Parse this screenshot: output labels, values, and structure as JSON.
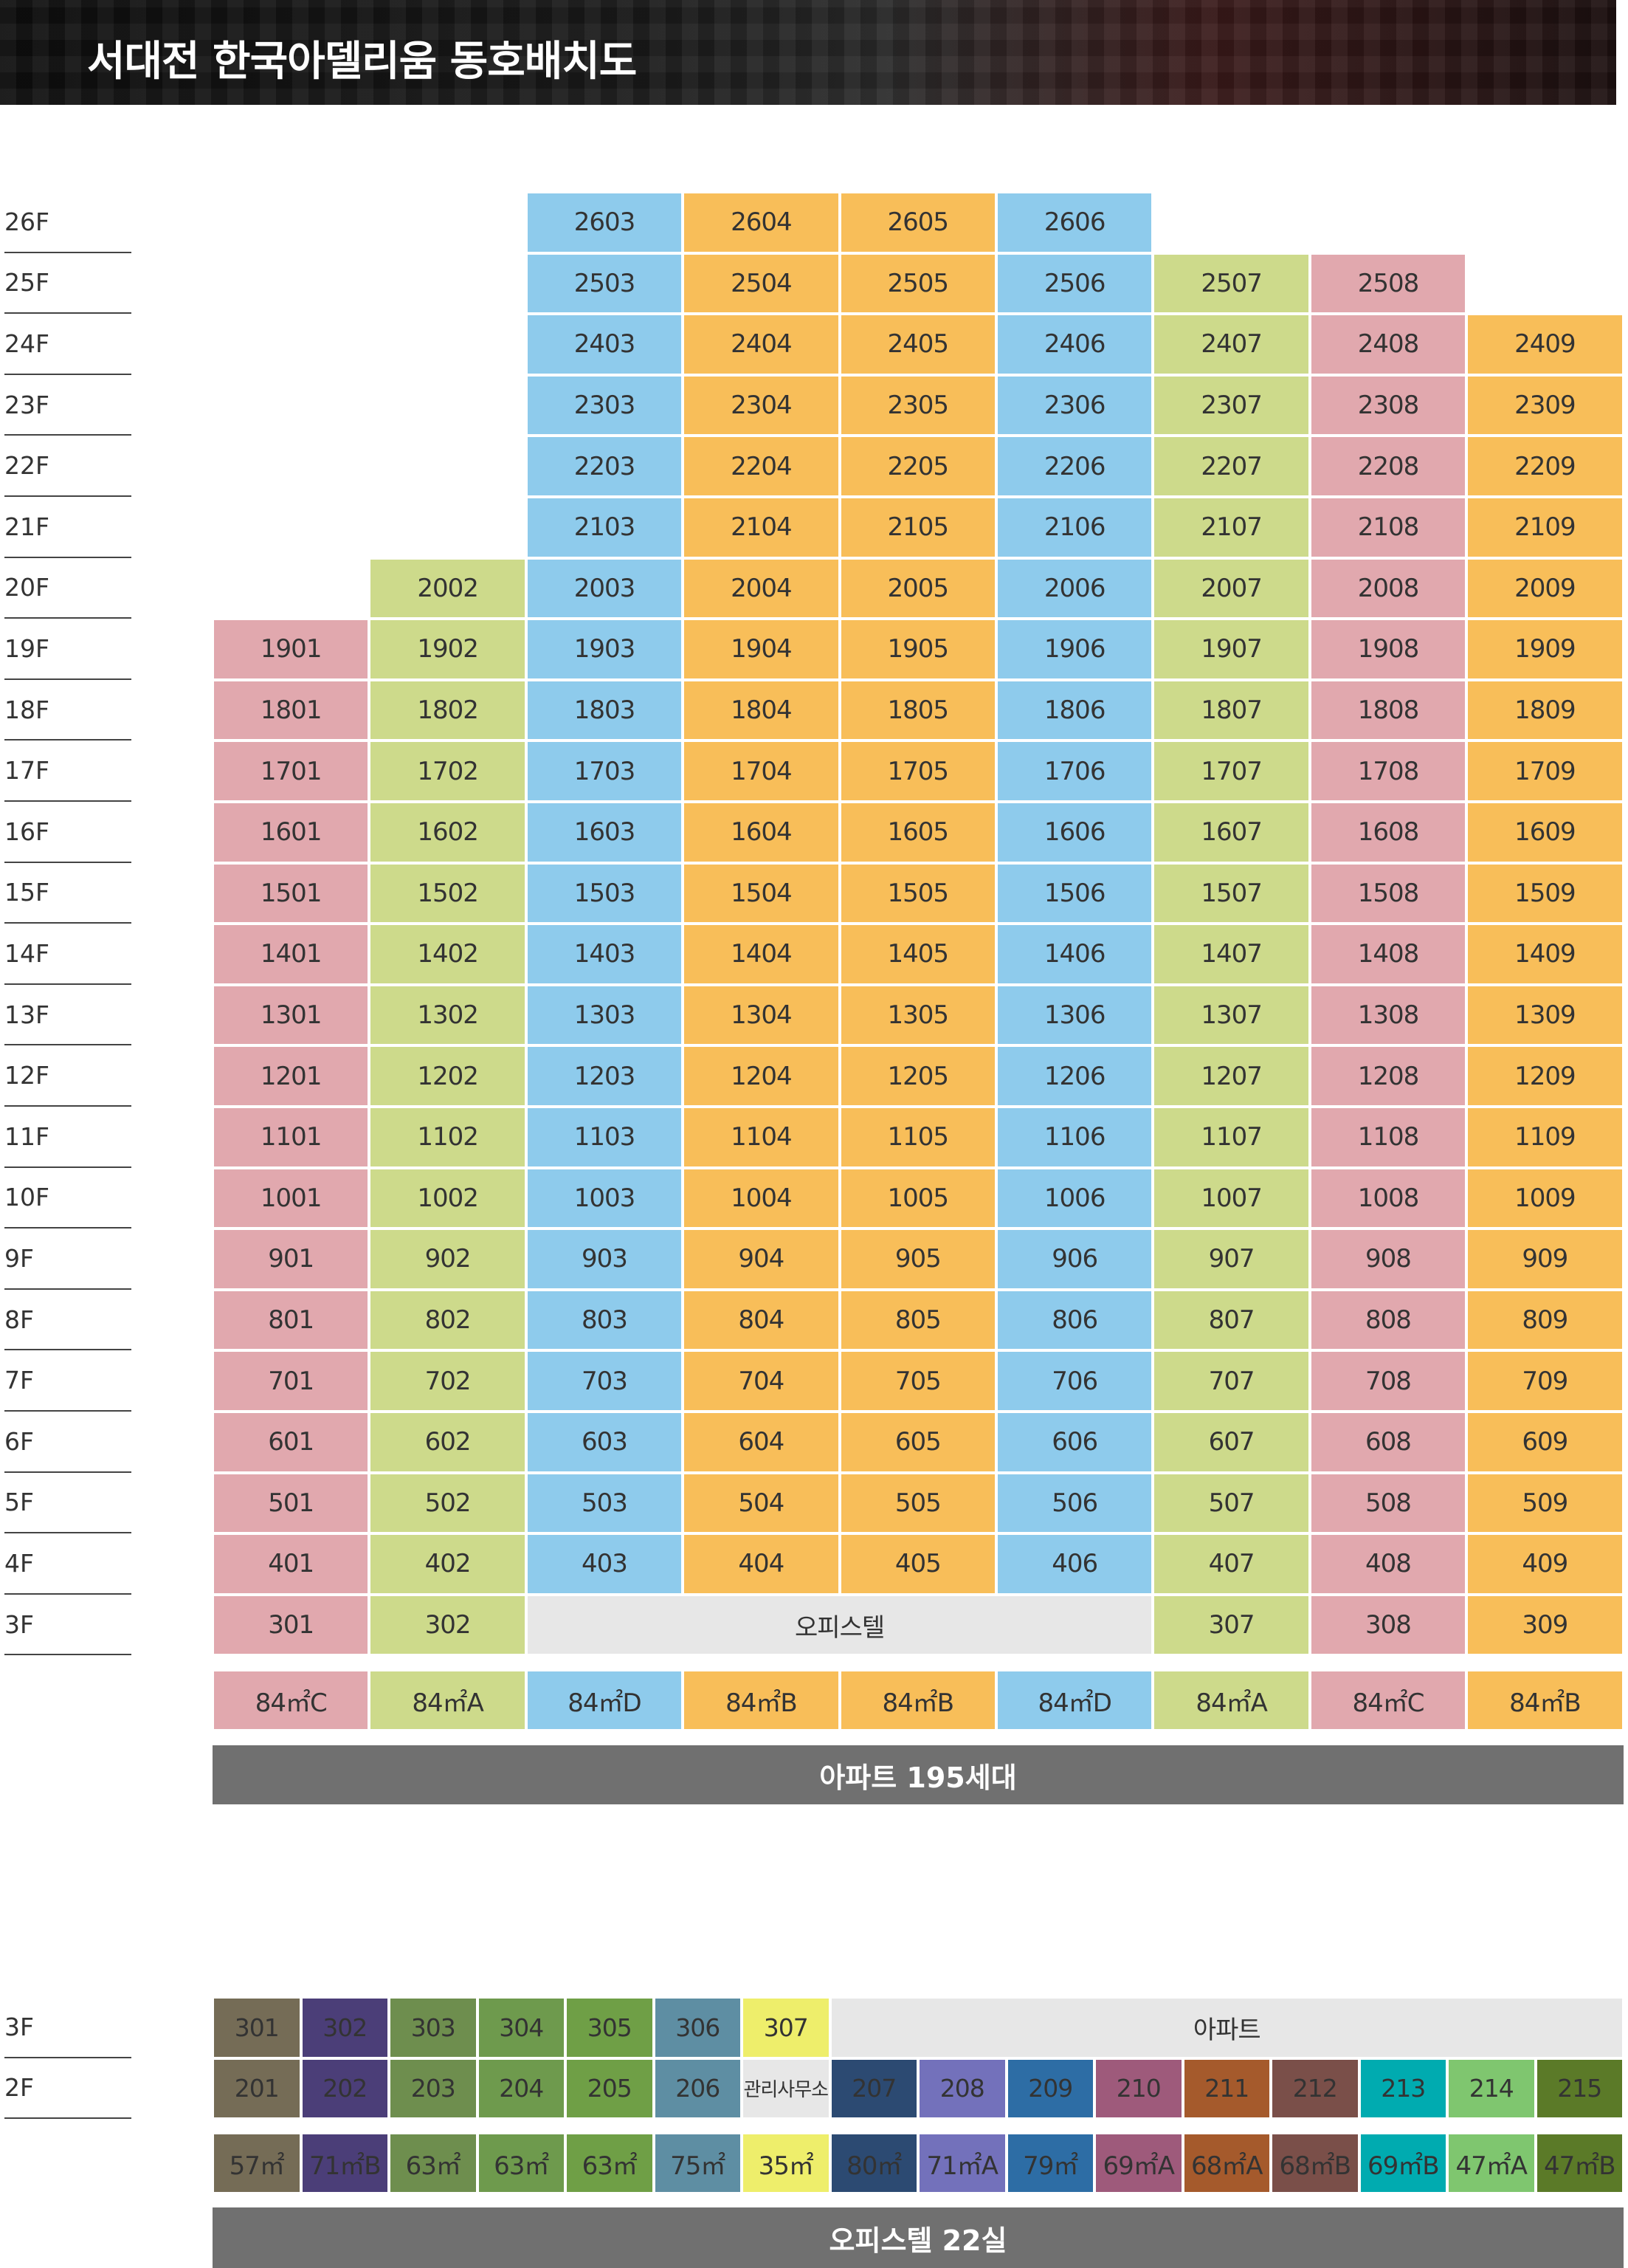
{
  "header": {
    "title": "서대전 한국아델리움 동호배치도"
  },
  "colors": {
    "C": "#e1a8ae",
    "A": "#cdda8b",
    "D": "#8ecbec",
    "B": "#f8be59",
    "office": "#e7e7e7"
  },
  "apartment": {
    "floors": [
      "26F",
      "25F",
      "24F",
      "23F",
      "22F",
      "21F",
      "20F",
      "19F",
      "18F",
      "17F",
      "16F",
      "15F",
      "14F",
      "13F",
      "12F",
      "11F",
      "10F",
      "9F",
      "8F",
      "7F",
      "6F",
      "5F",
      "4F",
      "3F"
    ],
    "column_types": [
      "C",
      "A",
      "D",
      "B",
      "B",
      "D",
      "A",
      "C",
      "B"
    ],
    "type_labels": [
      "84㎡C",
      "84㎡A",
      "84㎡D",
      "84㎡B",
      "84㎡B",
      "84㎡D",
      "84㎡A",
      "84㎡C",
      "84㎡B"
    ],
    "rows": [
      [
        null,
        null,
        "2603",
        "2604",
        "2605",
        "2606",
        null,
        null,
        null
      ],
      [
        null,
        null,
        "2503",
        "2504",
        "2505",
        "2506",
        "2507",
        "2508",
        null
      ],
      [
        null,
        null,
        "2403",
        "2404",
        "2405",
        "2406",
        "2407",
        "2408",
        "2409"
      ],
      [
        null,
        null,
        "2303",
        "2304",
        "2305",
        "2306",
        "2307",
        "2308",
        "2309"
      ],
      [
        null,
        null,
        "2203",
        "2204",
        "2205",
        "2206",
        "2207",
        "2208",
        "2209"
      ],
      [
        null,
        null,
        "2103",
        "2104",
        "2105",
        "2106",
        "2107",
        "2108",
        "2109"
      ],
      [
        null,
        "2002",
        "2003",
        "2004",
        "2005",
        "2006",
        "2007",
        "2008",
        "2009"
      ],
      [
        "1901",
        "1902",
        "1903",
        "1904",
        "1905",
        "1906",
        "1907",
        "1908",
        "1909"
      ],
      [
        "1801",
        "1802",
        "1803",
        "1804",
        "1805",
        "1806",
        "1807",
        "1808",
        "1809"
      ],
      [
        "1701",
        "1702",
        "1703",
        "1704",
        "1705",
        "1706",
        "1707",
        "1708",
        "1709"
      ],
      [
        "1601",
        "1602",
        "1603",
        "1604",
        "1605",
        "1606",
        "1607",
        "1608",
        "1609"
      ],
      [
        "1501",
        "1502",
        "1503",
        "1504",
        "1505",
        "1506",
        "1507",
        "1508",
        "1509"
      ],
      [
        "1401",
        "1402",
        "1403",
        "1404",
        "1405",
        "1406",
        "1407",
        "1408",
        "1409"
      ],
      [
        "1301",
        "1302",
        "1303",
        "1304",
        "1305",
        "1306",
        "1307",
        "1308",
        "1309"
      ],
      [
        "1201",
        "1202",
        "1203",
        "1204",
        "1205",
        "1206",
        "1207",
        "1208",
        "1209"
      ],
      [
        "1101",
        "1102",
        "1103",
        "1104",
        "1105",
        "1106",
        "1107",
        "1108",
        "1109"
      ],
      [
        "1001",
        "1002",
        "1003",
        "1004",
        "1005",
        "1006",
        "1007",
        "1008",
        "1009"
      ],
      [
        "901",
        "902",
        "903",
        "904",
        "905",
        "906",
        "907",
        "908",
        "909"
      ],
      [
        "801",
        "802",
        "803",
        "804",
        "805",
        "806",
        "807",
        "808",
        "809"
      ],
      [
        "701",
        "702",
        "703",
        "704",
        "705",
        "706",
        "707",
        "708",
        "709"
      ],
      [
        "601",
        "602",
        "603",
        "604",
        "605",
        "606",
        "607",
        "608",
        "609"
      ],
      [
        "501",
        "502",
        "503",
        "504",
        "505",
        "506",
        "507",
        "508",
        "509"
      ],
      [
        "401",
        "402",
        "403",
        "404",
        "405",
        "406",
        "407",
        "408",
        "409"
      ],
      [
        "301",
        "302",
        "office",
        "office",
        "office",
        "office",
        "307",
        "308",
        "309"
      ]
    ],
    "office_label": "오피스텔",
    "summary": "아파트 195세대"
  },
  "officetel": {
    "floors": [
      "3F",
      "2F"
    ],
    "row3": [
      "301",
      "302",
      "303",
      "304",
      "305",
      "306",
      "307"
    ],
    "row3_span_label": "아파트",
    "row2": [
      "201",
      "202",
      "203",
      "204",
      "205",
      "206",
      "관리사무소",
      "207",
      "208",
      "209",
      "210",
      "211",
      "212",
      "213",
      "214",
      "215"
    ],
    "colors": [
      "#756c56",
      "#4b3e78",
      "#6e8e4e",
      "#6e9a4d",
      "#6f9f46",
      "#5e8ea3",
      "#eeee6b",
      "#2c4a72",
      "#7371bb",
      "#2d6da5",
      "#9e5a7b",
      "#a55a2c",
      "#7a4f49",
      "#00abb0",
      "#7fc66f",
      "#5b7a28"
    ],
    "type_labels": [
      "57㎡",
      "71㎡B",
      "63㎡",
      "63㎡",
      "63㎡",
      "75㎡",
      "35㎡",
      "80㎡",
      "71㎡A",
      "79㎡",
      "69㎡A",
      "68㎡A",
      "68㎡B",
      "69㎡B",
      "47㎡A",
      "47㎡B"
    ],
    "summary": "오피스텔 22실"
  }
}
